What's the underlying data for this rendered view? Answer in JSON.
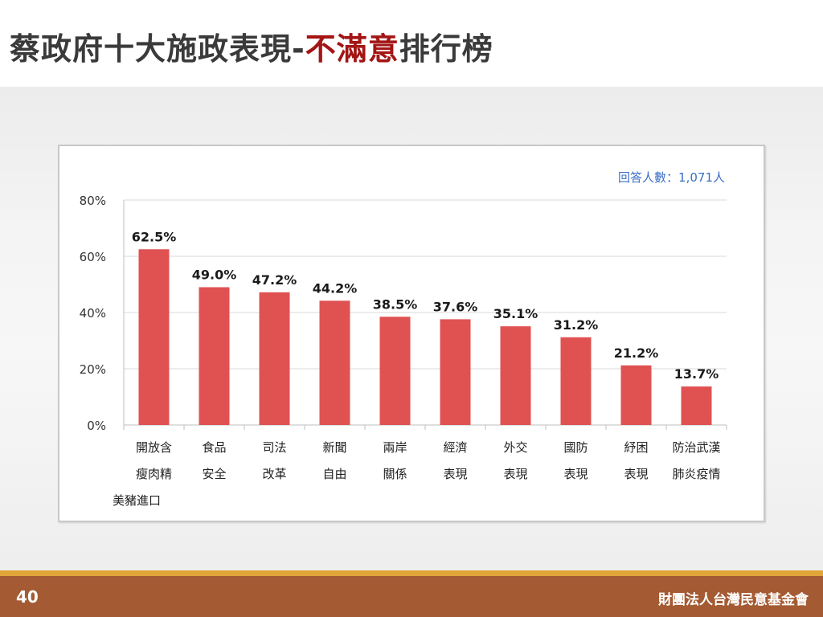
{
  "slide": {
    "title_prefix": "蔡政府十大施政表現-",
    "title_highlight": "不滿意",
    "title_suffix": "排行榜",
    "page_number": "40",
    "organization": "財團法人台灣民意基金會"
  },
  "colors": {
    "bar": "#e05252",
    "title_highlight": "#a31515",
    "respondents_text": "#3b6fc6",
    "footer": "#a45a32",
    "footer_accent": "#e2a53a"
  },
  "chart_data": {
    "type": "bar",
    "respondents_label": "回答人數：1,071人",
    "categories": [
      [
        "開放含",
        "瘦肉精",
        "美豬進口"
      ],
      [
        "食品",
        "安全"
      ],
      [
        "司法",
        "改革"
      ],
      [
        "新聞",
        "自由"
      ],
      [
        "兩岸",
        "關係"
      ],
      [
        "經濟",
        "表現"
      ],
      [
        "外交",
        "表現"
      ],
      [
        "國防",
        "表現"
      ],
      [
        "紓困",
        "表現"
      ],
      [
        "防治武漢",
        "肺炎疫情"
      ]
    ],
    "values": [
      62.5,
      49.0,
      47.2,
      44.2,
      38.5,
      37.6,
      35.1,
      31.2,
      21.2,
      13.7
    ],
    "value_labels": [
      "62.5%",
      "49.0%",
      "47.2%",
      "44.2%",
      "38.5%",
      "37.6%",
      "35.1%",
      "31.2%",
      "21.2%",
      "13.7%"
    ],
    "y_ticks": [
      0,
      20,
      40,
      60,
      80
    ],
    "y_tick_labels": [
      "0%",
      "20%",
      "40%",
      "60%",
      "80%"
    ],
    "ylim": [
      0,
      80
    ],
    "grid": true
  }
}
